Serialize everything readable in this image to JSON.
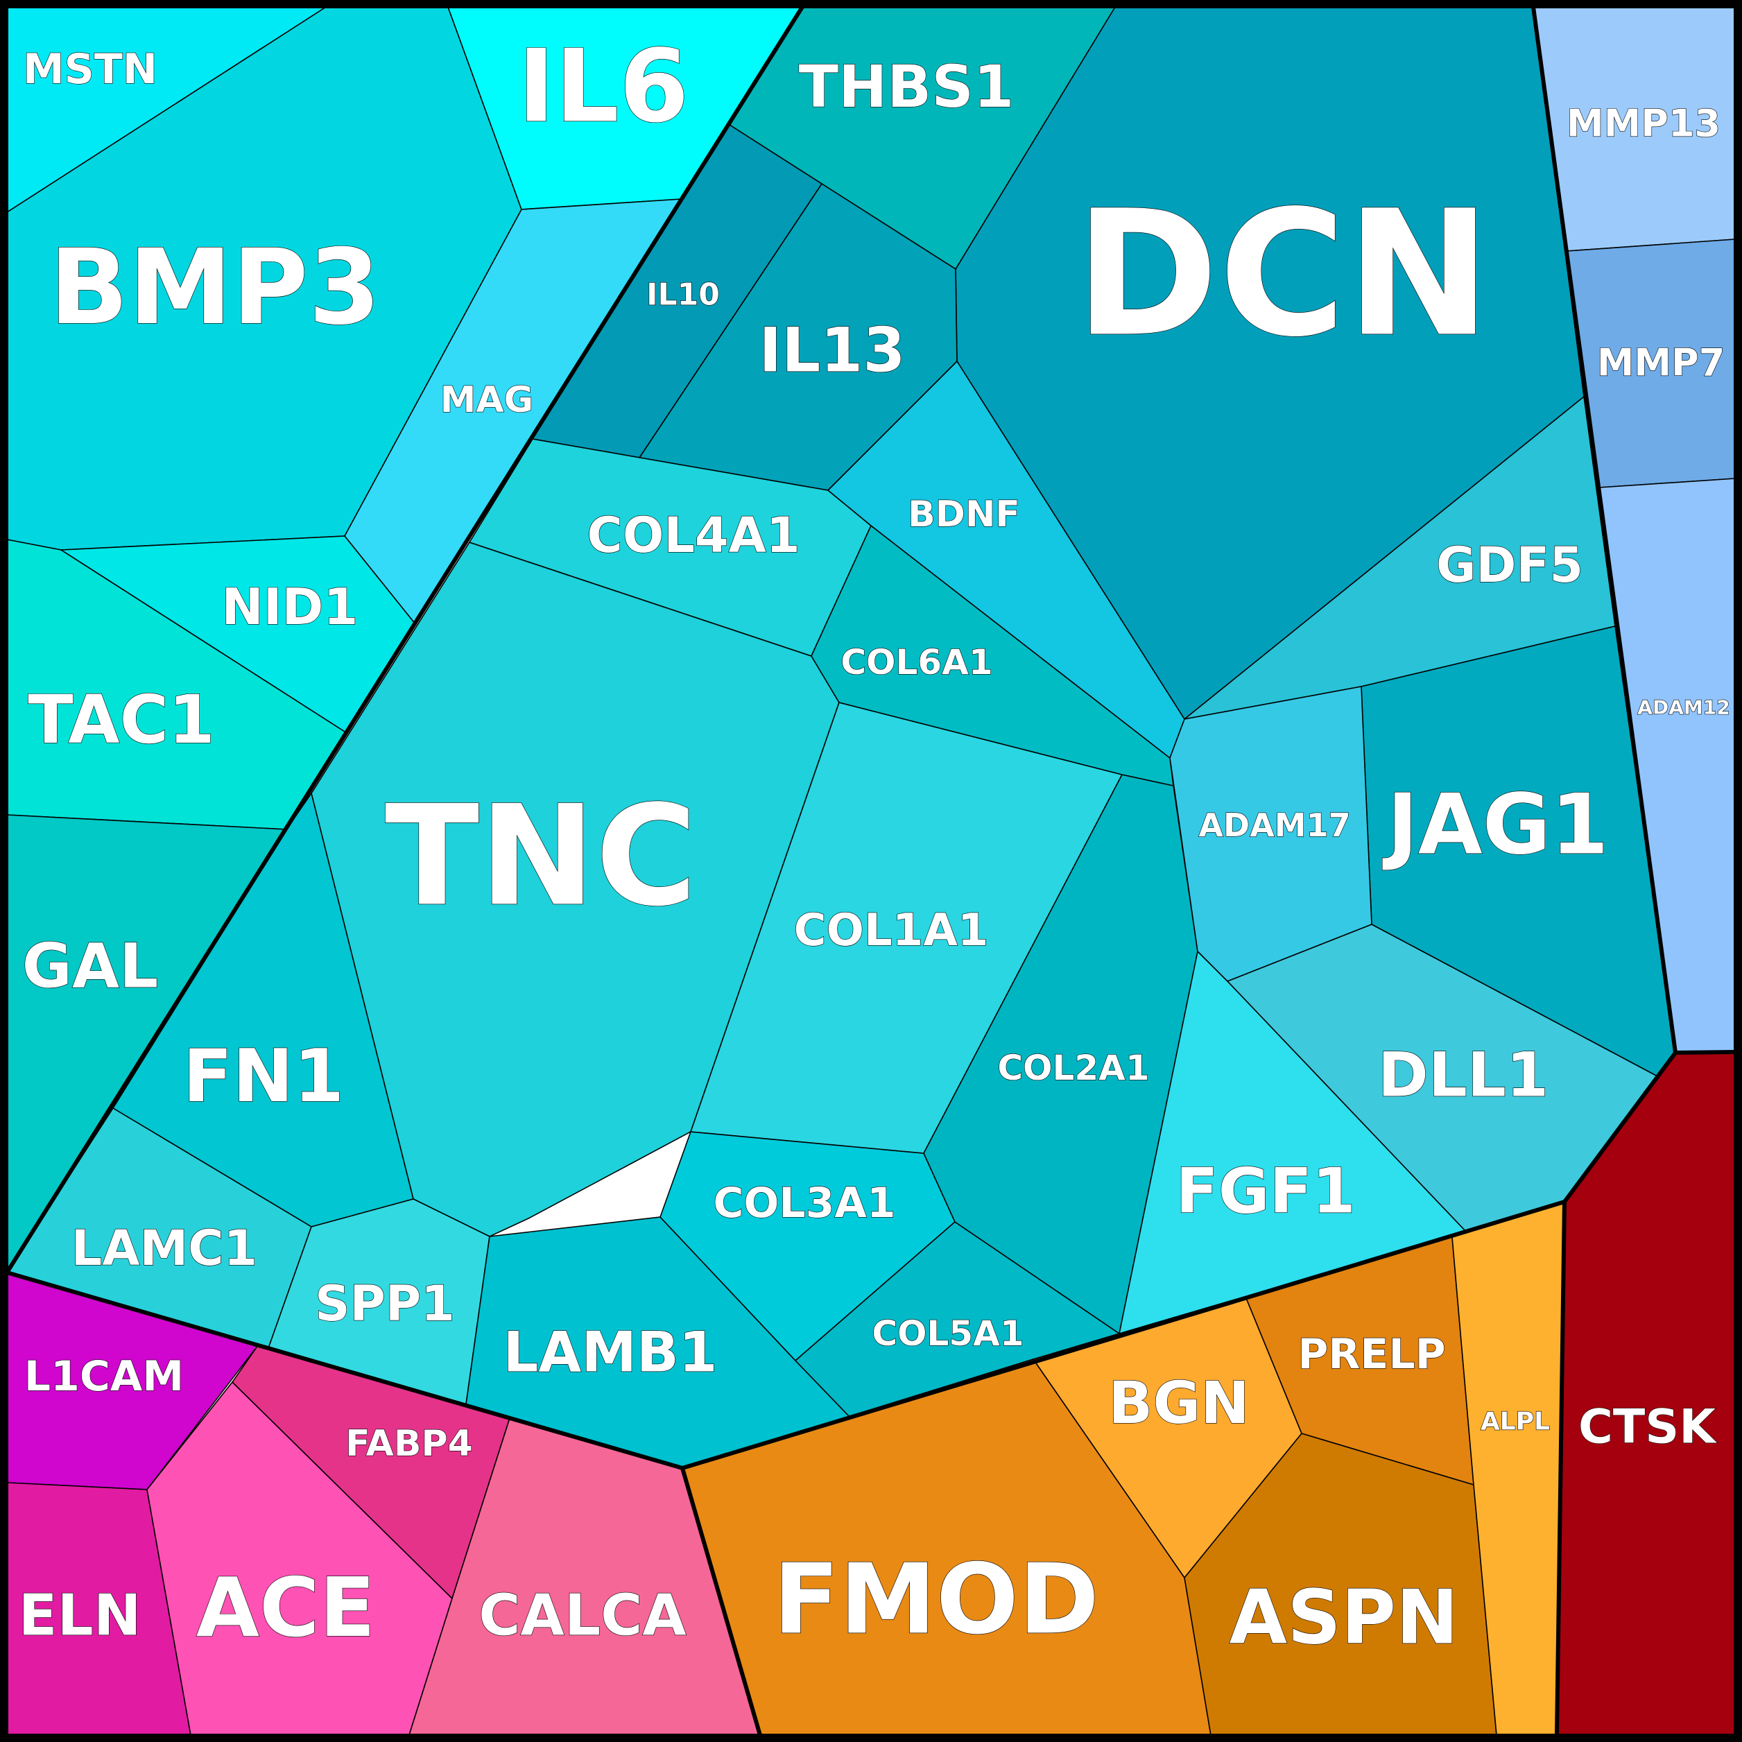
{
  "chart_data": {
    "type": "voronoi-treemap",
    "title": "",
    "cells": [
      {
        "label": "DCN",
        "group": "cyan",
        "color": "#029fba"
      },
      {
        "label": "TNC",
        "group": "cyan",
        "color": "#1ed1da"
      },
      {
        "label": "BMP3",
        "group": "cyan",
        "color": "#02d7e1"
      },
      {
        "label": "IL6",
        "group": "cyan",
        "color": "#00fdfd"
      },
      {
        "label": "THBS1",
        "group": "cyan",
        "color": "#00b6b9"
      },
      {
        "label": "IL13",
        "group": "cyan",
        "color": "#02a2b8"
      },
      {
        "label": "IL10",
        "group": "cyan",
        "color": "#029ab4"
      },
      {
        "label": "MAG",
        "group": "cyan",
        "color": "#33dbf8"
      },
      {
        "label": "MSTN",
        "group": "cyan",
        "color": "#00eaf6"
      },
      {
        "label": "NID1",
        "group": "cyan",
        "color": "#00e7e8"
      },
      {
        "label": "TAC1",
        "group": "cyan",
        "color": "#02e3d8"
      },
      {
        "label": "GAL",
        "group": "cyan",
        "color": "#02c8c6"
      },
      {
        "label": "FN1",
        "group": "cyan",
        "color": "#02c6d1"
      },
      {
        "label": "LAMC1",
        "group": "cyan",
        "color": "#28d1da"
      },
      {
        "label": "SPP1",
        "group": "cyan",
        "color": "#33d9e0"
      },
      {
        "label": "LAMB1",
        "group": "cyan",
        "color": "#00c1d0"
      },
      {
        "label": "COL3A1",
        "group": "cyan",
        "color": "#00cbdb"
      },
      {
        "label": "COL5A1",
        "group": "cyan",
        "color": "#02b9c7"
      },
      {
        "label": "COL1A1",
        "group": "cyan",
        "color": "#29d6e1"
      },
      {
        "label": "COL2A1",
        "group": "cyan",
        "color": "#00b5c2"
      },
      {
        "label": "COL4A1",
        "group": "cyan",
        "color": "#1ed3db"
      },
      {
        "label": "COL6A1",
        "group": "cyan",
        "color": "#02bcc4"
      },
      {
        "label": "BDNF",
        "group": "cyan",
        "color": "#13c6e1"
      },
      {
        "label": "GDF5",
        "group": "cyan",
        "color": "#29c2d6"
      },
      {
        "label": "JAG1",
        "group": "cyan",
        "color": "#02aabf"
      },
      {
        "label": "ADAM17",
        "group": "cyan",
        "color": "#36c9e6"
      },
      {
        "label": "DLL1",
        "group": "cyan",
        "color": "#3fc9dc"
      },
      {
        "label": "FGF1",
        "group": "cyan",
        "color": "#2edfee"
      },
      {
        "label": "MMP13",
        "group": "blue",
        "color": "#9ccbfb"
      },
      {
        "label": "MMP7",
        "group": "blue",
        "color": "#6eabe7"
      },
      {
        "label": "ADAM12",
        "group": "blue",
        "color": "#91c4fc"
      },
      {
        "label": "CTSK",
        "group": "red",
        "color": "#a4000e"
      },
      {
        "label": "FMOD",
        "group": "orange",
        "color": "#e98a15"
      },
      {
        "label": "ASPN",
        "group": "orange",
        "color": "#cf7b02"
      },
      {
        "label": "BGN",
        "group": "orange",
        "color": "#fdaa2f"
      },
      {
        "label": "PRELP",
        "group": "orange",
        "color": "#e2840f"
      },
      {
        "label": "ALPL",
        "group": "orange",
        "color": "#fdb12f"
      },
      {
        "label": "L1CAM",
        "group": "magenta",
        "color": "#d005ce"
      },
      {
        "label": "ELN",
        "group": "magenta",
        "color": "#e21ba3"
      },
      {
        "label": "ACE",
        "group": "magenta",
        "color": "#ff52b5"
      },
      {
        "label": "FABP4",
        "group": "magenta",
        "color": "#e5338a"
      },
      {
        "label": "CALCA",
        "group": "magenta",
        "color": "#f56797"
      }
    ]
  }
}
